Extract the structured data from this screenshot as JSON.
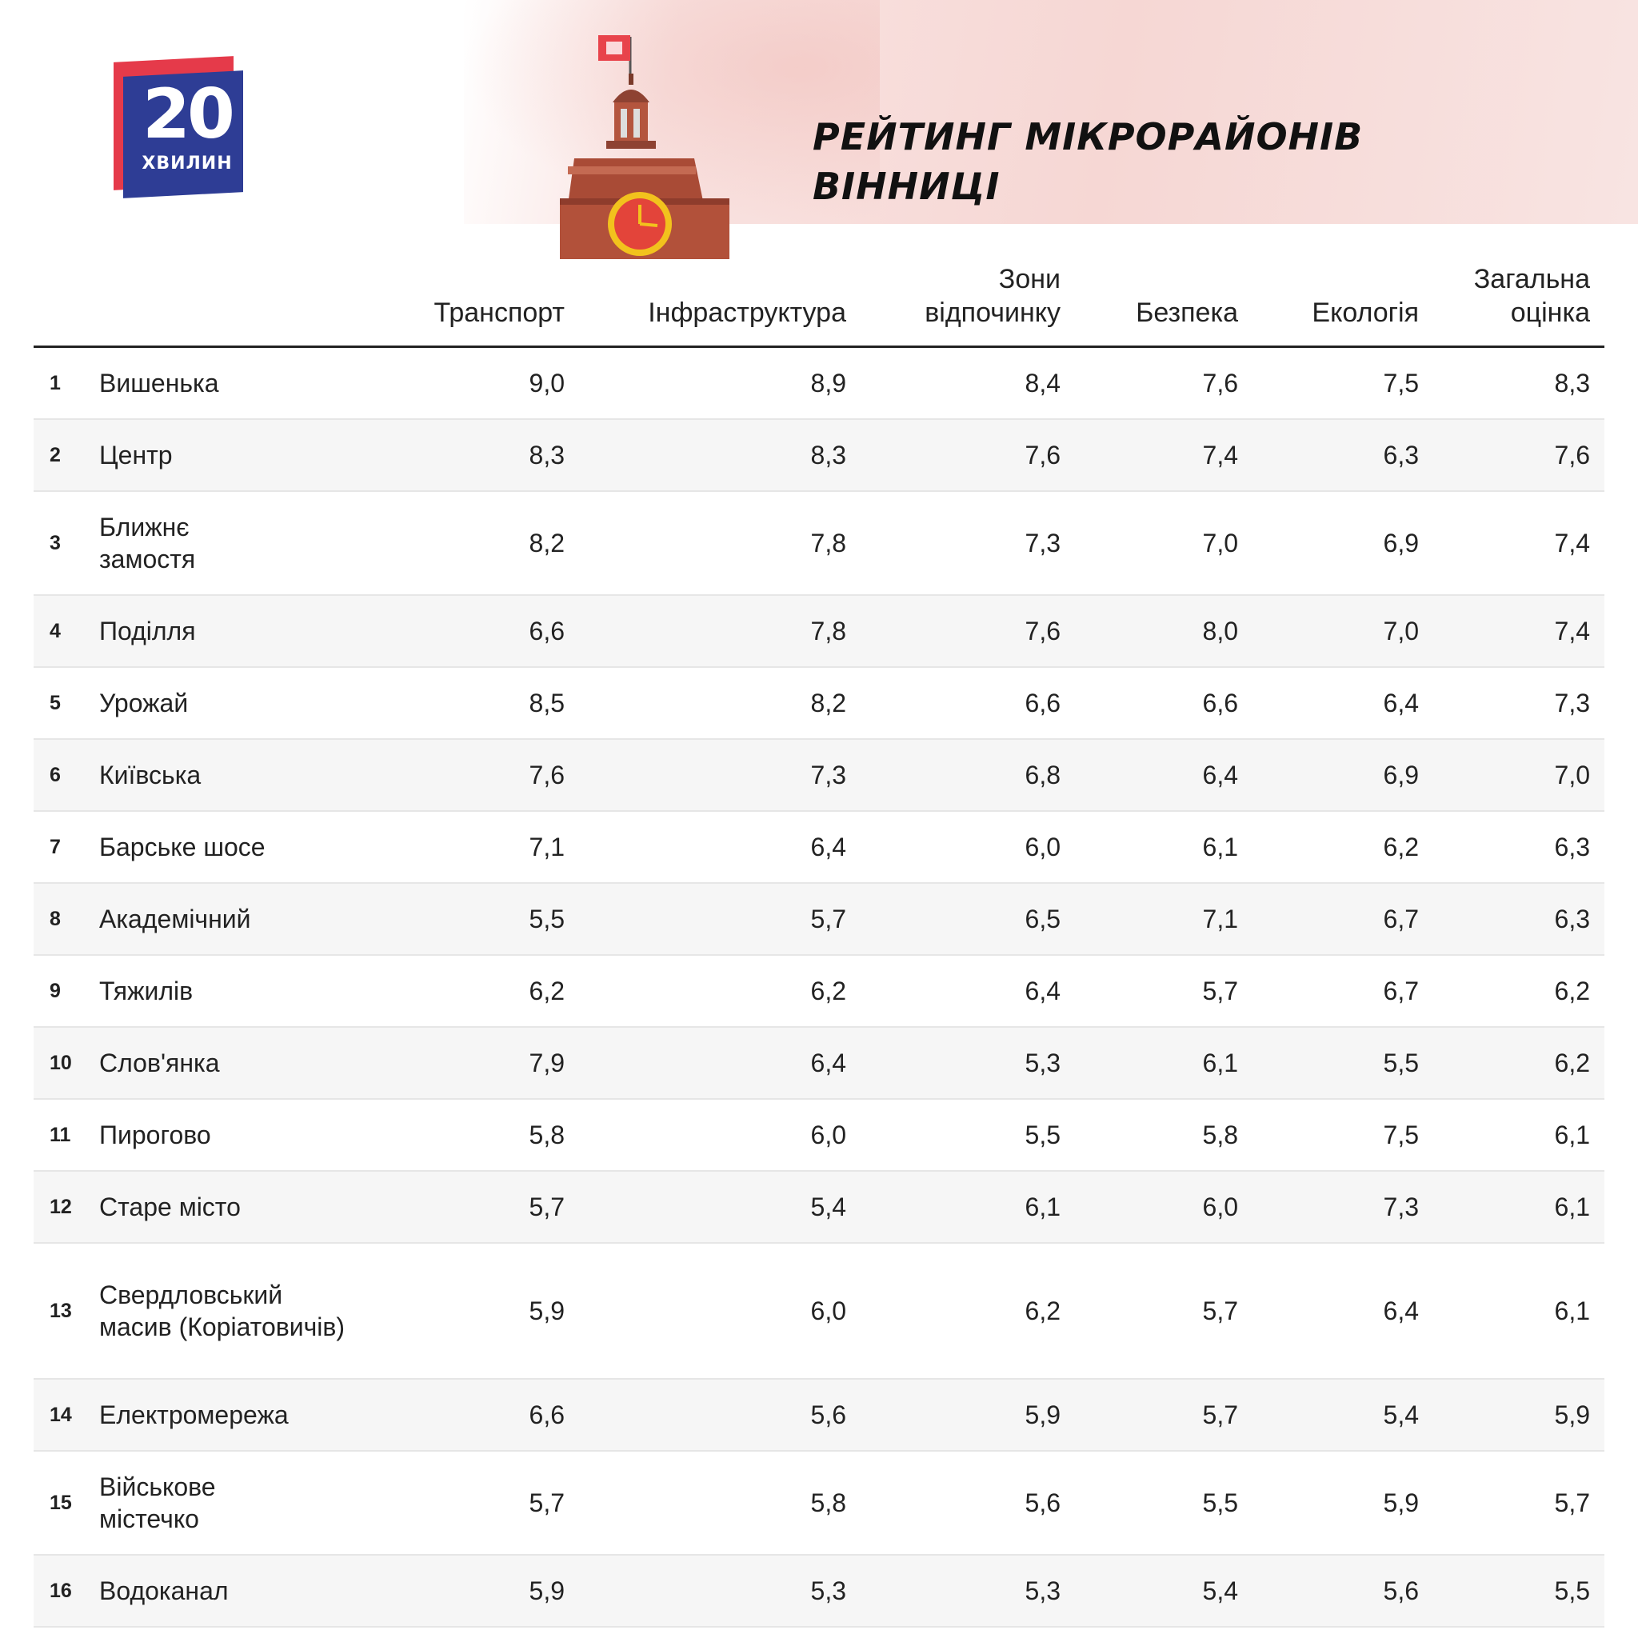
{
  "logo": {
    "number": "20",
    "word": "ХВИЛИН"
  },
  "title": {
    "line1": "РЕЙТИНГ МІКРОРАЙОНІВ",
    "line2": "ВІННИЦІ"
  },
  "table": {
    "headers": [
      "Транспорт",
      "Інфраструктура",
      "Зони відпочинку",
      "Безпека",
      "Екологія",
      "Загальна оцінка"
    ],
    "rows": [
      {
        "rank": "1",
        "name": "Вишенька",
        "values": [
          "9,0",
          "8,9",
          "8,4",
          "7,6",
          "7,5",
          "8,3"
        ]
      },
      {
        "rank": "2",
        "name": "Центр",
        "values": [
          "8,3",
          "8,3",
          "7,6",
          "7,4",
          "6,3",
          "7,6"
        ]
      },
      {
        "rank": "3",
        "name": "Ближнє замостя",
        "values": [
          "8,2",
          "7,8",
          "7,3",
          "7,0",
          "6,9",
          "7,4"
        ]
      },
      {
        "rank": "4",
        "name": "Поділля",
        "values": [
          "6,6",
          "7,8",
          "7,6",
          "8,0",
          "7,0",
          "7,4"
        ]
      },
      {
        "rank": "5",
        "name": "Урожай",
        "values": [
          "8,5",
          "8,2",
          "6,6",
          "6,6",
          "6,4",
          "7,3"
        ]
      },
      {
        "rank": "6",
        "name": "Київська",
        "values": [
          "7,6",
          "7,3",
          "6,8",
          "6,4",
          "6,9",
          "7,0"
        ]
      },
      {
        "rank": "7",
        "name": "Барське шосе",
        "values": [
          "7,1",
          "6,4",
          "6,0",
          "6,1",
          "6,2",
          "6,3"
        ]
      },
      {
        "rank": "8",
        "name": "Академічний",
        "values": [
          "5,5",
          "5,7",
          "6,5",
          "7,1",
          "6,7",
          "6,3"
        ]
      },
      {
        "rank": "9",
        "name": "Тяжилів",
        "values": [
          "6,2",
          "6,2",
          "6,4",
          "5,7",
          "6,7",
          "6,2"
        ]
      },
      {
        "rank": "10",
        "name": "Слов'янка",
        "values": [
          "7,9",
          "6,4",
          "5,3",
          "6,1",
          "5,5",
          "6,2"
        ]
      },
      {
        "rank": "11",
        "name": "Пирогово",
        "values": [
          "5,8",
          "6,0",
          "5,5",
          "5,8",
          "7,5",
          "6,1"
        ]
      },
      {
        "rank": "12",
        "name": "Старе місто",
        "values": [
          "5,7",
          "5,4",
          "6,1",
          "6,0",
          "7,3",
          "6,1"
        ]
      },
      {
        "rank": "13",
        "name": "Свердловський масив (Коріатовичів)",
        "values": [
          "5,9",
          "6,0",
          "6,2",
          "5,7",
          "6,4",
          "6,1"
        ]
      },
      {
        "rank": "14",
        "name": "Електромережа",
        "values": [
          "6,6",
          "5,6",
          "5,9",
          "5,7",
          "5,4",
          "5,9"
        ]
      },
      {
        "rank": "15",
        "name": "Військове містечко",
        "values": [
          "5,7",
          "5,8",
          "5,6",
          "5,5",
          "5,9",
          "5,7"
        ]
      },
      {
        "rank": "16",
        "name": "Водоканал",
        "values": [
          "5,9",
          "5,3",
          "5,3",
          "5,4",
          "5,6",
          "5,5"
        ]
      }
    ]
  }
}
